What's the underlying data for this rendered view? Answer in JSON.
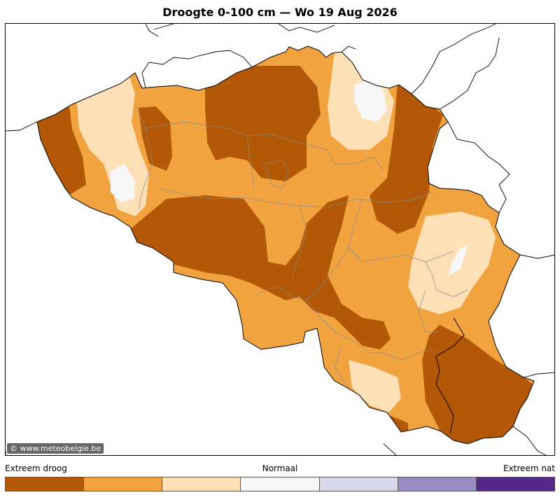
{
  "title": "Droogte 0-100 cm  —  Wo 19 Aug 2026",
  "credit": "© www.meteobelgie.be",
  "legend": {
    "left_label": "Extreem droog",
    "mid_label": "Normaal",
    "right_label": "Extreem nat",
    "classes": [
      {
        "color": "#b35806"
      },
      {
        "color": "#f1a340"
      },
      {
        "color": "#fee0b6"
      },
      {
        "color": "#f7f7f7"
      },
      {
        "color": "#d8daeb"
      },
      {
        "color": "#998ec3"
      },
      {
        "color": "#542788"
      }
    ]
  },
  "colors": {
    "extreme_dry": "#b35806",
    "dry": "#f1a340",
    "slightly_dry": "#fee0b6",
    "normal": "#f7f7f7"
  }
}
